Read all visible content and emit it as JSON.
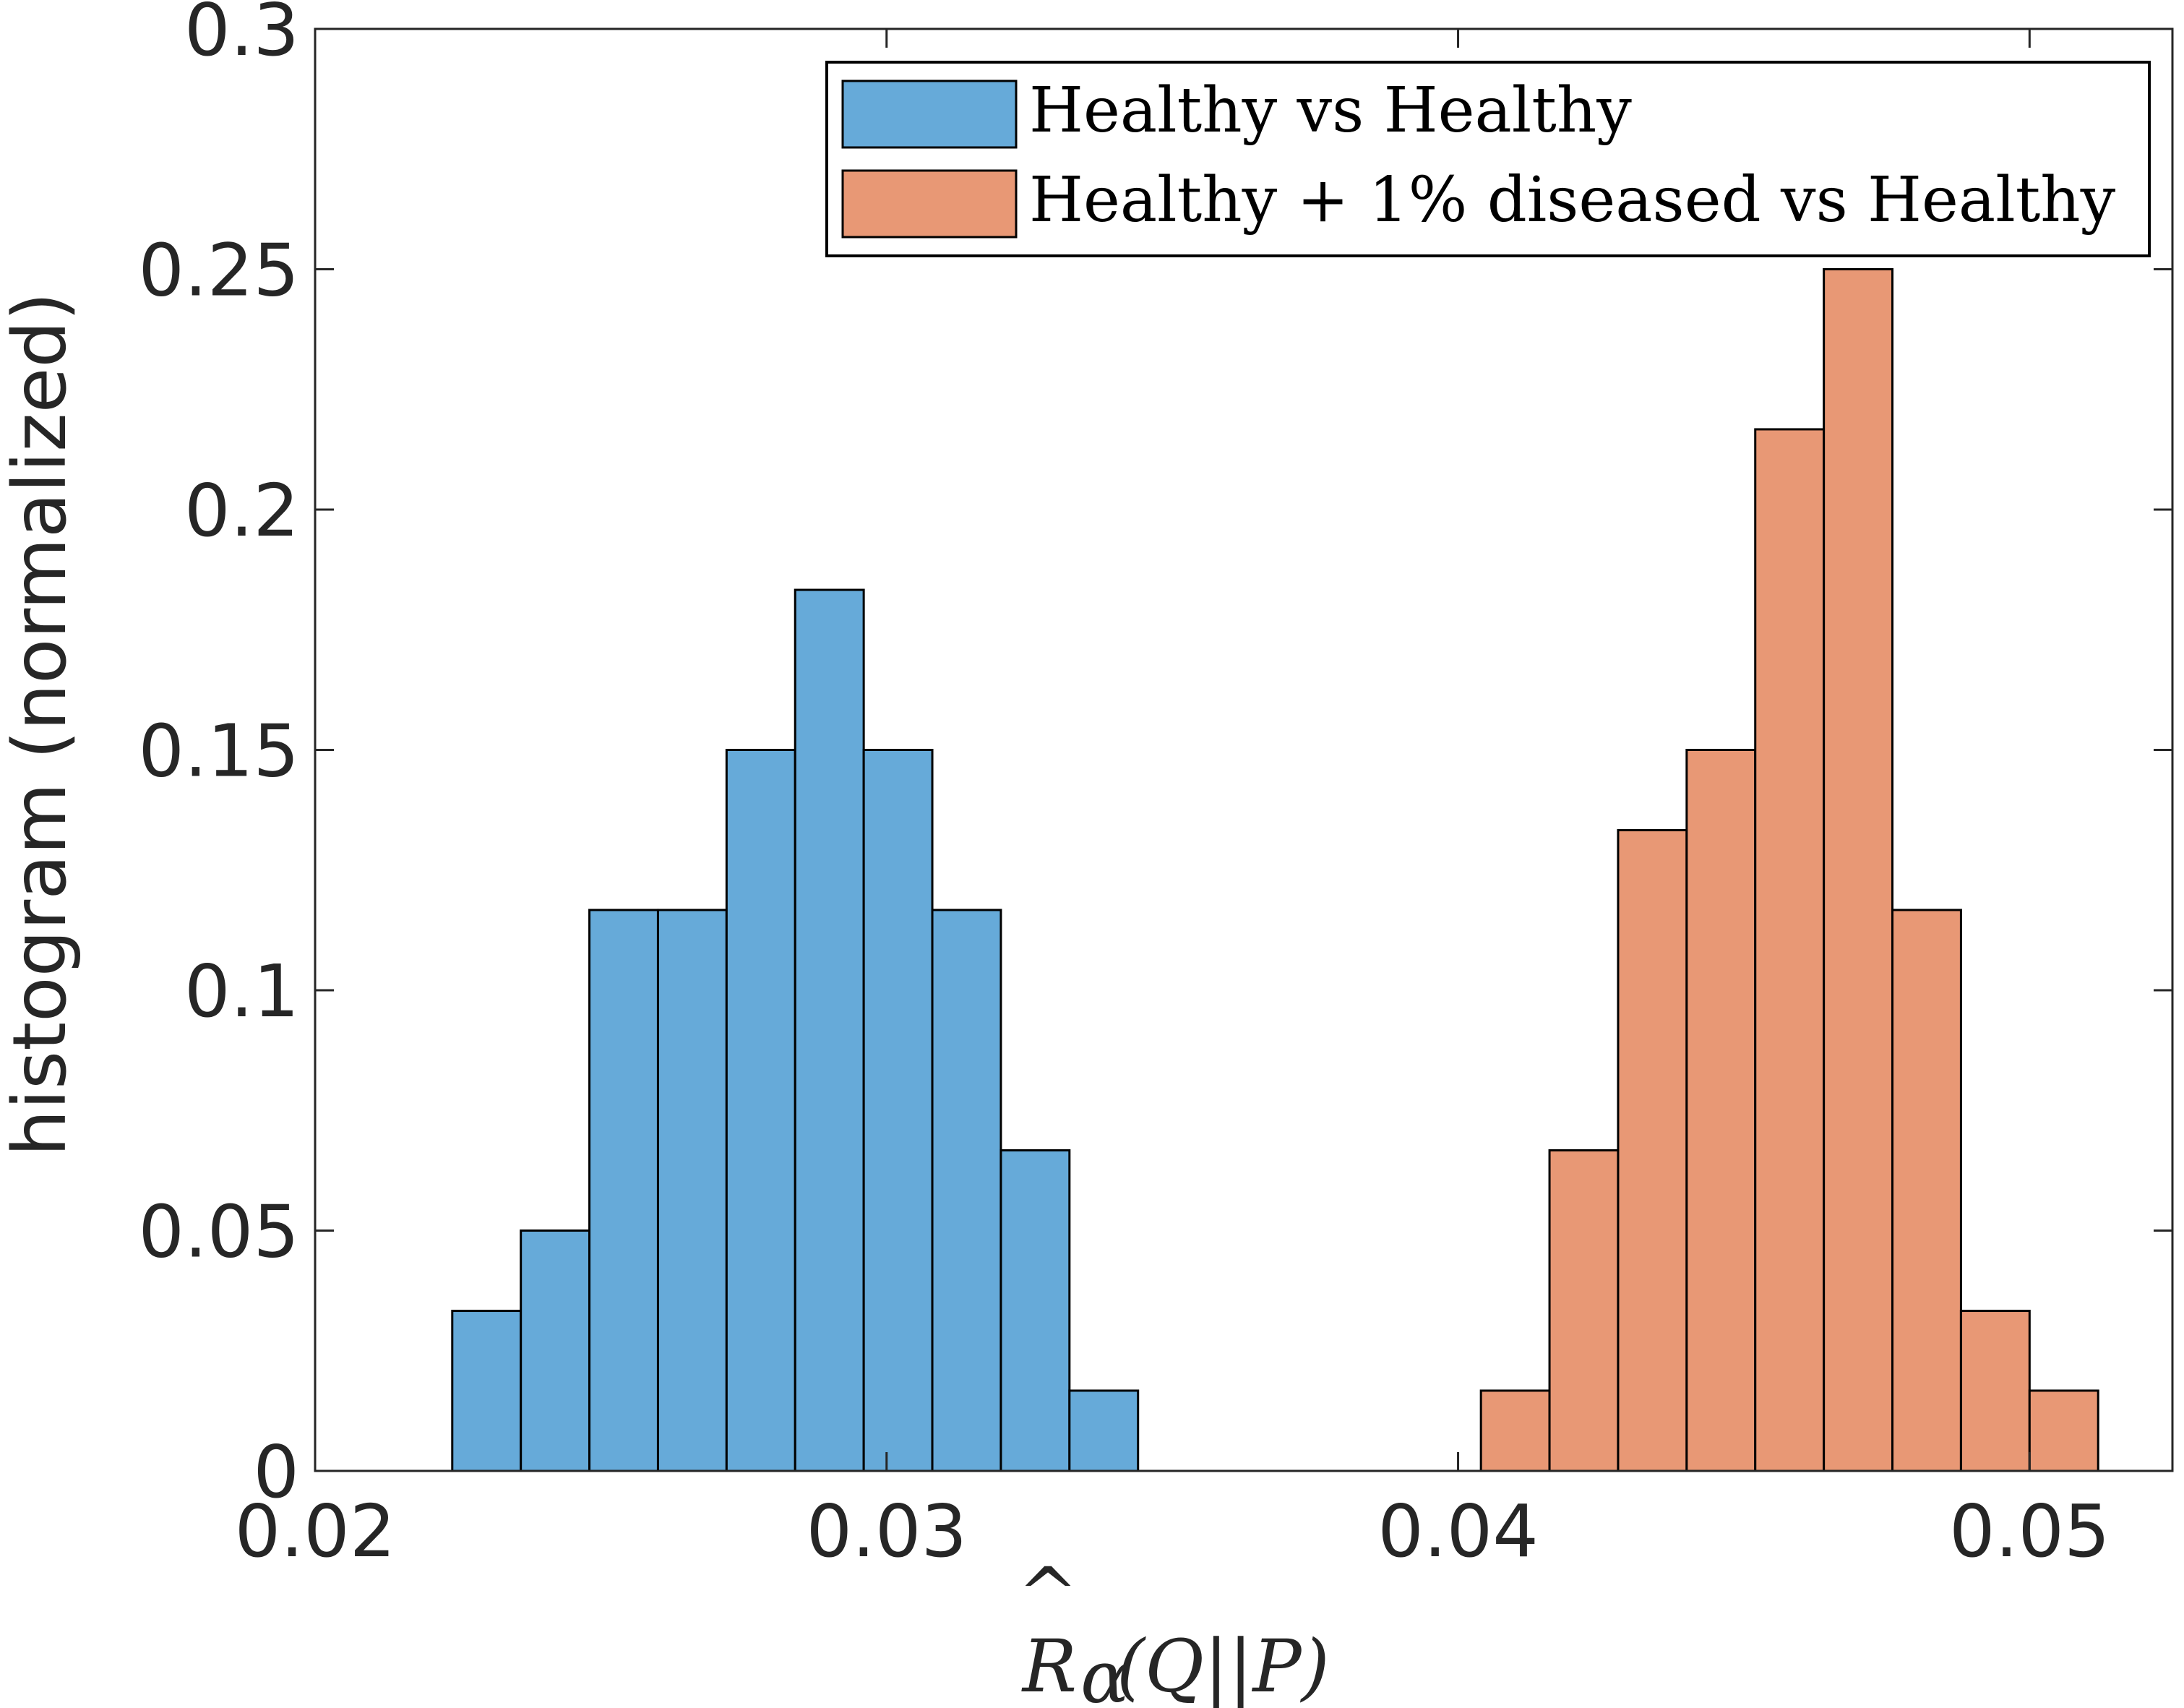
{
  "chart_data": {
    "type": "bar",
    "title": "",
    "xlabel": "R̂α(Q||P)",
    "ylabel": "histogram (normalized)",
    "xlim": [
      0.02,
      0.0525
    ],
    "ylim": [
      0,
      0.3
    ],
    "xticks": [
      0.02,
      0.03,
      0.04,
      0.05
    ],
    "xtick_labels": [
      "0.02",
      "0.03",
      "0.04",
      "0.05"
    ],
    "yticks": [
      0,
      0.05,
      0.1,
      0.15,
      0.2,
      0.25,
      0.3
    ],
    "ytick_labels": [
      "0",
      "0.05",
      "0.1",
      "0.15",
      "0.2",
      "0.25",
      "0.3"
    ],
    "grid": false,
    "legend_position": "top-right",
    "bin_width": 0.0012,
    "series": [
      {
        "name": "Healthy vs Healthy",
        "color": "#66aad9",
        "bin_starts": [
          0.0224,
          0.0236,
          0.0248,
          0.026,
          0.0272,
          0.0284,
          0.0296,
          0.0308,
          0.032,
          0.0332
        ],
        "values": [
          0.0333,
          0.05,
          0.1167,
          0.1167,
          0.15,
          0.1833,
          0.15,
          0.1167,
          0.0667,
          0.0167
        ]
      },
      {
        "name": "Healthy + 1% diseased vs Healthy",
        "color": "#e89875",
        "bin_starts": [
          0.0404,
          0.0416,
          0.0428,
          0.044,
          0.0452,
          0.0464,
          0.0476,
          0.0488,
          0.05
        ],
        "values": [
          0.0167,
          0.0667,
          0.1333,
          0.15,
          0.2167,
          0.25,
          0.1167,
          0.0333,
          0.0167
        ]
      }
    ]
  }
}
